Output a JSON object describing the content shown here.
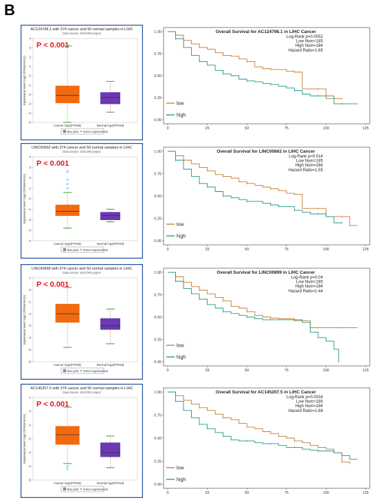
{
  "panel_label": "B",
  "colors": {
    "cancer_box": "#f26a0f",
    "normal_box": "#6a3ab0",
    "low_curve": "#c1772b",
    "high_curve": "#1b9580",
    "pval": "#e8141c",
    "frame": "#1f4e9a"
  },
  "chart_data": [
    {
      "type": "box",
      "title": "AC124798.1 with 374 cancer and 50 normal samples in LIHC",
      "subtitle": "Data Source: ENCORI project",
      "pvalue_label": "P < 0.001",
      "ylabel": "Expression level: log2 (FPKM+0.01)",
      "categories": [
        "Cancer log2(FPKM)",
        "Normal log2(FPKM)"
      ],
      "legend": [
        "Box plot",
        "Gene expressions"
      ],
      "ylim": [
        -5,
        4
      ],
      "yticks": [
        4,
        3,
        2,
        1,
        0,
        -1,
        -2,
        -3,
        -4,
        -5
      ],
      "boxes": [
        {
          "q1": -2.9,
          "median": -2.1,
          "q3": -1.1,
          "whisker_low": -5.0,
          "whisker_high": 3.2,
          "outliers_high": [
            3.3
          ]
        },
        {
          "q1": -3.0,
          "median": -2.3,
          "q3": -1.8,
          "whisker_low": -3.9,
          "whisker_high": -0.6,
          "outliers_high": []
        }
      ]
    },
    {
      "type": "line",
      "title": "Overall Survival for AC124798.1 in LIHC Cancer",
      "stats": [
        "Log-Rank p=0.0052",
        "Low Num=185",
        "High Num=184",
        "Hazard Ratio=1.65"
      ],
      "legend": [
        "low",
        "high"
      ],
      "xlim": [
        0,
        125
      ],
      "ylim": [
        0,
        1.0
      ],
      "xticks": [
        0,
        25,
        50,
        75,
        100,
        125
      ],
      "yticks": [
        "0.00",
        "0.25",
        "0.50",
        "0.75",
        "1.00"
      ],
      "series": [
        {
          "name": "low",
          "x": [
            0,
            5,
            10,
            15,
            20,
            25,
            30,
            35,
            40,
            45,
            50,
            55,
            60,
            65,
            70,
            75,
            80,
            85,
            90,
            95,
            100,
            105,
            110
          ],
          "y": [
            1.0,
            0.96,
            0.9,
            0.86,
            0.82,
            0.8,
            0.76,
            0.73,
            0.72,
            0.69,
            0.66,
            0.6,
            0.58,
            0.57,
            0.57,
            0.55,
            0.54,
            0.35,
            0.35,
            0.35,
            0.24,
            0.24,
            0.24
          ]
        },
        {
          "name": "high",
          "x": [
            0,
            5,
            10,
            15,
            20,
            25,
            30,
            35,
            40,
            45,
            50,
            55,
            60,
            65,
            70,
            75,
            80,
            85,
            90,
            95,
            100,
            105,
            110,
            115,
            120
          ],
          "y": [
            1.0,
            0.92,
            0.82,
            0.73,
            0.66,
            0.62,
            0.56,
            0.52,
            0.5,
            0.46,
            0.44,
            0.43,
            0.41,
            0.4,
            0.38,
            0.36,
            0.33,
            0.29,
            0.27,
            0.27,
            0.27,
            0.18,
            0.18,
            0.18,
            0.18
          ]
        }
      ]
    },
    {
      "type": "box",
      "title": "LINC00662 with 374 cancer and 50 normal samples in LIHC",
      "subtitle": "Data Source: ENCORI project",
      "pvalue_label": "P < 0.001",
      "ylabel": "Expression level: log2 (FPKM+0.01)",
      "categories": [
        "Cancer log2(FPKM)",
        "Normal log2(FPKM)"
      ],
      "legend": [
        "Box plot",
        "Gene expressions"
      ],
      "ylim": [
        -4,
        4
      ],
      "yticks": [
        4,
        3,
        2,
        1,
        0,
        -1,
        -2,
        -3,
        -4
      ],
      "boxes": [
        {
          "q1": -1.6,
          "median": -1.2,
          "q3": -0.6,
          "whisker_low": -2.8,
          "whisker_high": 0.6,
          "outliers_high": [
            1.0,
            1.4,
            1.8,
            2.6
          ]
        },
        {
          "q1": -2.0,
          "median": -1.6,
          "q3": -1.3,
          "whisker_low": -2.2,
          "whisker_high": -1.0,
          "outliers_high": []
        }
      ]
    },
    {
      "type": "line",
      "title": "Overall Survival for LINC00662 in LIHC Cancer",
      "stats": [
        "Log-Rank p=0.014",
        "Low Num=185",
        "High Num=184",
        "Hazard Ratio=1.55"
      ],
      "legend": [
        "low",
        "high"
      ],
      "xlim": [
        0,
        125
      ],
      "ylim": [
        0,
        1.0
      ],
      "xticks": [
        0,
        25,
        50,
        75,
        100,
        125
      ],
      "yticks": [
        "0.00",
        "0.25",
        "0.50",
        "0.75",
        "1.00"
      ],
      "series": [
        {
          "name": "low",
          "x": [
            0,
            5,
            10,
            15,
            20,
            25,
            30,
            35,
            40,
            45,
            50,
            55,
            60,
            65,
            70,
            75,
            80,
            85,
            90,
            95,
            100,
            105,
            110,
            115,
            120
          ],
          "y": [
            1.0,
            0.95,
            0.9,
            0.86,
            0.82,
            0.78,
            0.74,
            0.72,
            0.7,
            0.66,
            0.64,
            0.62,
            0.6,
            0.58,
            0.56,
            0.53,
            0.52,
            0.36,
            0.36,
            0.36,
            0.27,
            0.27,
            0.27,
            0.17,
            0.17
          ]
        },
        {
          "name": "high",
          "x": [
            0,
            5,
            10,
            15,
            20,
            25,
            30,
            35,
            40,
            45,
            50,
            55,
            60,
            65,
            70,
            75,
            80,
            85,
            90,
            95,
            100,
            105,
            110
          ],
          "y": [
            1.0,
            0.9,
            0.8,
            0.72,
            0.64,
            0.6,
            0.55,
            0.5,
            0.48,
            0.46,
            0.44,
            0.44,
            0.42,
            0.4,
            0.38,
            0.38,
            0.34,
            0.32,
            0.3,
            0.3,
            0.27,
            0.2,
            0.2
          ]
        }
      ]
    },
    {
      "type": "box",
      "title": "LINC00899 with 374 cancer and 50 normal samples in LIHC",
      "subtitle": "Data Source: ENCORI project",
      "pvalue_label": "P < 0.001",
      "ylabel": "Expression level: log2 (FPKM+0.01)",
      "categories": [
        "Cancer log2(FPKM)",
        "Normal log2(FPKM)"
      ],
      "legend": [
        "Box plot",
        "Gene expressions"
      ],
      "ylim": [
        -6,
        1
      ],
      "yticks": [
        1,
        0,
        -1,
        -2,
        -3,
        -4,
        -5,
        -6
      ],
      "boxes": [
        {
          "q1": -2.7,
          "median": -2.0,
          "q3": -1.2,
          "whisker_low": -4.8,
          "whisker_high": 0.2,
          "outliers_high": []
        },
        {
          "q1": -3.3,
          "median": -3.0,
          "q3": -2.4,
          "whisker_low": -4.5,
          "whisker_high": -1.6,
          "outliers_high": []
        }
      ]
    },
    {
      "type": "line",
      "title": "Overall Survival for LINC00899 in LIHC Cancer",
      "stats": [
        "Log-Rank p=0.04",
        "Low Num=185",
        "High Num=184",
        "Hazard Ratio=1.44"
      ],
      "legend": [
        "low",
        "high"
      ],
      "xlim": [
        0,
        125
      ],
      "ylim": [
        0,
        1.0
      ],
      "xticks": [
        0,
        25,
        50,
        75,
        100,
        125
      ],
      "yticks": [
        "0.00",
        "0.25",
        "0.50",
        "0.75",
        "1.00"
      ],
      "series": [
        {
          "name": "low",
          "x": [
            0,
            5,
            10,
            15,
            20,
            25,
            30,
            35,
            40,
            45,
            50,
            55,
            60,
            65,
            70,
            75,
            80,
            85,
            90,
            95,
            100,
            105,
            110,
            115,
            120
          ],
          "y": [
            1.0,
            0.95,
            0.89,
            0.84,
            0.8,
            0.76,
            0.72,
            0.68,
            0.62,
            0.6,
            0.56,
            0.52,
            0.5,
            0.49,
            0.48,
            0.48,
            0.46,
            0.46,
            0.38,
            0.38,
            0.38,
            0.38,
            0.38,
            0.38,
            0.38
          ]
        },
        {
          "name": "high",
          "x": [
            0,
            5,
            10,
            15,
            20,
            25,
            30,
            35,
            40,
            45,
            50,
            55,
            60,
            65,
            70,
            75,
            80,
            85,
            90,
            95,
            100,
            105,
            108
          ],
          "y": [
            1.0,
            0.9,
            0.82,
            0.76,
            0.7,
            0.64,
            0.6,
            0.56,
            0.54,
            0.52,
            0.5,
            0.48,
            0.47,
            0.47,
            0.47,
            0.47,
            0.47,
            0.44,
            0.33,
            0.27,
            0.23,
            0.14,
            0.0
          ]
        }
      ]
    },
    {
      "type": "box",
      "title": "AC145207.5 with 374 cancer and 50 normal samples in LIHC",
      "subtitle": "Data Source: ENCORI project",
      "pvalue_label": "P < 0.001",
      "ylabel": "Expression level: log2 (FPKM+0.01)",
      "categories": [
        "Cancer log2(FPKM)",
        "Normal log2(FPKM)"
      ],
      "legend": [
        "Box plot",
        "Gene expressions"
      ],
      "ylim": [
        -5,
        1
      ],
      "yticks": [
        1,
        0,
        -1,
        -2,
        -3,
        -4,
        -5
      ],
      "boxes": [
        {
          "q1": -2.4,
          "median": -1.7,
          "q3": -1.1,
          "whisker_low": -3.8,
          "whisker_high": 0.3,
          "outliers_low": [
            -4.0,
            -4.2
          ]
        },
        {
          "q1": -3.3,
          "median": -3.0,
          "q3": -2.3,
          "whisker_low": -4.1,
          "whisker_high": -1.8,
          "outliers_low": []
        }
      ]
    },
    {
      "type": "line",
      "title": "Overall Survival for AC145207.5 in LIHC Cancer",
      "stats": [
        "Log-Rank p=0.0034",
        "Low Num=185",
        "High Num=184",
        "Hazard Ratio=1.68"
      ],
      "legend": [
        "low",
        "high"
      ],
      "xlim": [
        0,
        125
      ],
      "ylim": [
        0,
        1.0
      ],
      "xticks": [
        0,
        25,
        50,
        75,
        100,
        125
      ],
      "yticks": [
        "0.00",
        "0.25",
        "0.50",
        "0.75",
        "1.00"
      ],
      "series": [
        {
          "name": "low",
          "x": [
            0,
            5,
            10,
            15,
            20,
            25,
            30,
            35,
            40,
            45,
            50,
            55,
            60,
            65,
            70,
            75,
            80,
            85,
            90,
            95,
            100,
            105,
            110,
            115
          ],
          "y": [
            1.0,
            0.96,
            0.91,
            0.87,
            0.83,
            0.8,
            0.76,
            0.72,
            0.7,
            0.66,
            0.62,
            0.6,
            0.57,
            0.55,
            0.52,
            0.5,
            0.47,
            0.45,
            0.42,
            0.4,
            0.38,
            0.34,
            0.24,
            0.22
          ]
        },
        {
          "name": "high",
          "x": [
            0,
            5,
            10,
            15,
            20,
            25,
            30,
            35,
            40,
            45,
            50,
            55,
            60,
            65,
            70,
            75,
            80,
            85,
            90,
            95,
            100,
            105,
            110,
            115,
            120
          ],
          "y": [
            1.0,
            0.9,
            0.8,
            0.72,
            0.65,
            0.6,
            0.56,
            0.52,
            0.48,
            0.47,
            0.47,
            0.45,
            0.44,
            0.44,
            0.42,
            0.4,
            0.4,
            0.38,
            0.37,
            0.36,
            0.36,
            0.34,
            0.31,
            0.27,
            0.27
          ]
        }
      ]
    }
  ]
}
